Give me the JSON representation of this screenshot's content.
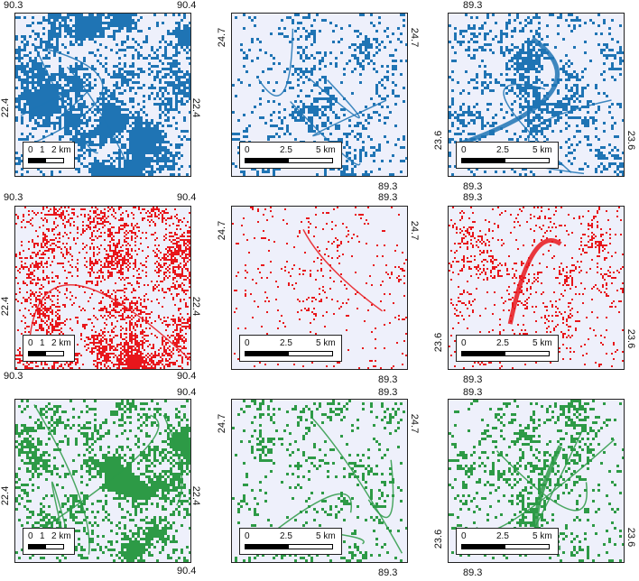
{
  "colors": {
    "row1": "#1f74b4",
    "row2": "#e8161b",
    "row3": "#2d9a46",
    "background": "#eef0fb"
  },
  "columns": [
    {
      "lon": "90.3",
      "lon2": "90.4",
      "lat": "22.4",
      "scale": [
        "0",
        "1",
        "2 km"
      ]
    },
    {
      "lon": "89.3",
      "lat": "24.7",
      "scale": [
        "0",
        "2.5",
        "5 km"
      ]
    },
    {
      "lon": "89.3",
      "lat": "23.6",
      "scale": [
        "0",
        "2.5",
        "5 km"
      ]
    }
  ],
  "rows": [
    {
      "name": "blue",
      "color": "#1f74b4",
      "density": [
        0.55,
        0.22,
        0.3
      ]
    },
    {
      "name": "red",
      "color": "#e8161b",
      "density": [
        0.35,
        0.06,
        0.14
      ]
    },
    {
      "name": "green",
      "color": "#2d9a46",
      "density": [
        0.42,
        0.18,
        0.24
      ]
    }
  ]
}
